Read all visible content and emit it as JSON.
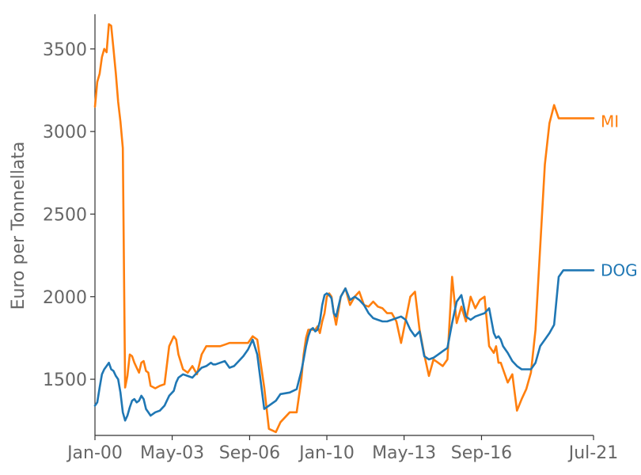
{
  "chart_data": {
    "type": "line",
    "title": "",
    "xlabel": "",
    "ylabel": "Euro per Tonnellata",
    "x_ticks": [
      "Jan-00",
      "May-03",
      "Sep-06",
      "Jan-10",
      "May-13",
      "Sep-16",
      "Jul-21"
    ],
    "x_tick_positions": [
      2000.0,
      2003.33,
      2006.67,
      2010.0,
      2013.33,
      2016.67,
      2021.5
    ],
    "xlim": [
      2000.0,
      2021.5
    ],
    "y_ticks": [
      1500,
      2000,
      2500,
      3000,
      3500
    ],
    "ylim": [
      1160,
      3710
    ],
    "grid": false,
    "legend": "inline labels at right end of lines",
    "series": [
      {
        "name": "MI",
        "color": "#ff7f0e",
        "x": [
          2000.0,
          2000.1,
          2000.2,
          2000.3,
          2000.4,
          2000.5,
          2000.6,
          2000.7,
          2000.8,
          2000.9,
          2001.0,
          2001.1,
          2001.2,
          2001.3,
          2001.4,
          2001.5,
          2001.6,
          2001.7,
          2001.8,
          2001.9,
          2002.0,
          2002.1,
          2002.2,
          2002.3,
          2002.4,
          2002.6,
          2002.8,
          2003.0,
          2003.2,
          2003.4,
          2003.5,
          2003.6,
          2003.8,
          2004.0,
          2004.2,
          2004.4,
          2004.6,
          2004.8,
          2005.0,
          2005.1,
          2005.2,
          2005.4,
          2005.6,
          2005.8,
          2006.0,
          2006.2,
          2006.4,
          2006.6,
          2006.8,
          2007.0,
          2007.3,
          2007.5,
          2007.8,
          2008.0,
          2008.4,
          2008.7,
          2008.9,
          2009.0,
          2009.1,
          2009.2,
          2009.3,
          2009.4,
          2009.5,
          2009.6,
          2009.7,
          2009.8,
          2009.9,
          2010.0,
          2010.1,
          2010.2,
          2010.3,
          2010.4,
          2010.6,
          2010.8,
          2011.0,
          2011.2,
          2011.4,
          2011.6,
          2011.8,
          2012.0,
          2012.2,
          2012.4,
          2012.6,
          2012.8,
          2013.0,
          2013.2,
          2013.4,
          2013.6,
          2013.8,
          2014.0,
          2014.2,
          2014.4,
          2014.6,
          2014.8,
          2015.0,
          2015.2,
          2015.4,
          2015.6,
          2015.8,
          2016.0,
          2016.2,
          2016.4,
          2016.6,
          2016.8,
          2017.0,
          2017.2,
          2017.3,
          2017.4,
          2017.5,
          2017.6,
          2017.8,
          2018.0,
          2018.2,
          2018.4,
          2018.6,
          2018.8,
          2019.0,
          2019.2,
          2019.4,
          2019.6,
          2019.8,
          2020.0,
          2020.2,
          2020.4,
          2020.6,
          2020.8,
          2020.9,
          2021.0,
          2021.1,
          2021.2,
          2021.3,
          2021.4,
          2021.5
        ],
        "values": [
          3150,
          3300,
          3350,
          3450,
          3500,
          3480,
          3650,
          3640,
          3500,
          3350,
          3180,
          3060,
          2900,
          1450,
          1520,
          1650,
          1640,
          1600,
          1570,
          1540,
          1600,
          1610,
          1550,
          1540,
          1460,
          1445,
          1460,
          1470,
          1700,
          1760,
          1740,
          1650,
          1560,
          1540,
          1580,
          1530,
          1650,
          1700,
          1700,
          1700,
          1700,
          1700,
          1710,
          1720,
          1720,
          1720,
          1720,
          1720,
          1760,
          1740,
          1450,
          1200,
          1180,
          1240,
          1300,
          1300,
          1500,
          1650,
          1750,
          1800,
          1800,
          1800,
          1800,
          1820,
          1780,
          1850,
          1900,
          2000,
          2020,
          2000,
          1900,
          1830,
          2000,
          2050,
          1950,
          2000,
          2030,
          1950,
          1940,
          1970,
          1940,
          1930,
          1900,
          1900,
          1850,
          1720,
          1860,
          2000,
          2030,
          1800,
          1650,
          1520,
          1620,
          1600,
          1580,
          1620,
          2120,
          1840,
          1940,
          1850,
          2000,
          1930,
          1980,
          2000,
          1700,
          1660,
          1700,
          1600,
          1600,
          1560,
          1480,
          1530,
          1310,
          1380,
          1440,
          1540,
          1800,
          2300,
          2800,
          3050,
          3160,
          3080,
          3080,
          3080,
          3080,
          3080,
          3080,
          3080,
          3080,
          3080,
          3080,
          3080,
          3080
        ]
      },
      {
        "name": "DOG",
        "color": "#1f77b4",
        "x": [
          2000.0,
          2000.1,
          2000.2,
          2000.3,
          2000.4,
          2000.5,
          2000.6,
          2000.7,
          2000.8,
          2000.9,
          2001.0,
          2001.1,
          2001.2,
          2001.3,
          2001.4,
          2001.5,
          2001.6,
          2001.7,
          2001.8,
          2001.9,
          2002.0,
          2002.1,
          2002.2,
          2002.3,
          2002.4,
          2002.6,
          2002.8,
          2003.0,
          2003.2,
          2003.4,
          2003.5,
          2003.6,
          2003.8,
          2004.0,
          2004.2,
          2004.4,
          2004.6,
          2004.8,
          2005.0,
          2005.1,
          2005.2,
          2005.4,
          2005.6,
          2005.8,
          2006.0,
          2006.2,
          2006.4,
          2006.6,
          2006.8,
          2007.0,
          2007.3,
          2007.5,
          2007.8,
          2008.0,
          2008.4,
          2008.7,
          2008.9,
          2009.0,
          2009.1,
          2009.2,
          2009.3,
          2009.4,
          2009.5,
          2009.6,
          2009.7,
          2009.8,
          2009.9,
          2010.0,
          2010.1,
          2010.2,
          2010.3,
          2010.4,
          2010.6,
          2010.8,
          2011.0,
          2011.2,
          2011.4,
          2011.6,
          2011.8,
          2012.0,
          2012.2,
          2012.4,
          2012.6,
          2012.8,
          2013.0,
          2013.2,
          2013.4,
          2013.6,
          2013.8,
          2014.0,
          2014.2,
          2014.4,
          2014.6,
          2014.8,
          2015.0,
          2015.2,
          2015.4,
          2015.6,
          2015.8,
          2016.0,
          2016.2,
          2016.4,
          2016.6,
          2016.8,
          2017.0,
          2017.2,
          2017.3,
          2017.4,
          2017.5,
          2017.6,
          2017.8,
          2018.0,
          2018.2,
          2018.4,
          2018.6,
          2018.8,
          2019.0,
          2019.2,
          2019.4,
          2019.6,
          2019.8,
          2020.0,
          2020.2,
          2020.4,
          2020.6,
          2020.8,
          2020.9,
          2021.0,
          2021.1,
          2021.2,
          2021.3,
          2021.4,
          2021.5
        ],
        "values": [
          1340,
          1360,
          1450,
          1530,
          1560,
          1580,
          1600,
          1560,
          1550,
          1520,
          1500,
          1420,
          1300,
          1250,
          1280,
          1330,
          1370,
          1380,
          1360,
          1370,
          1400,
          1380,
          1320,
          1300,
          1280,
          1300,
          1310,
          1340,
          1400,
          1430,
          1480,
          1510,
          1530,
          1520,
          1510,
          1540,
          1570,
          1580,
          1600,
          1590,
          1590,
          1600,
          1610,
          1570,
          1580,
          1610,
          1640,
          1680,
          1740,
          1650,
          1320,
          1340,
          1370,
          1410,
          1420,
          1440,
          1550,
          1620,
          1700,
          1760,
          1800,
          1810,
          1790,
          1800,
          1850,
          1950,
          2010,
          2020,
          2010,
          1990,
          1900,
          1880,
          2000,
          2050,
          1980,
          2000,
          1980,
          1950,
          1900,
          1870,
          1860,
          1850,
          1850,
          1860,
          1870,
          1880,
          1860,
          1800,
          1760,
          1790,
          1640,
          1620,
          1630,
          1650,
          1670,
          1690,
          1840,
          1970,
          2010,
          1880,
          1860,
          1880,
          1890,
          1900,
          1930,
          1780,
          1750,
          1760,
          1740,
          1700,
          1660,
          1610,
          1580,
          1560,
          1560,
          1560,
          1600,
          1700,
          1740,
          1780,
          1830,
          2120,
          2160,
          2160,
          2160,
          2160,
          2160,
          2160,
          2160,
          2160,
          2160,
          2160,
          2160
        ]
      }
    ]
  }
}
